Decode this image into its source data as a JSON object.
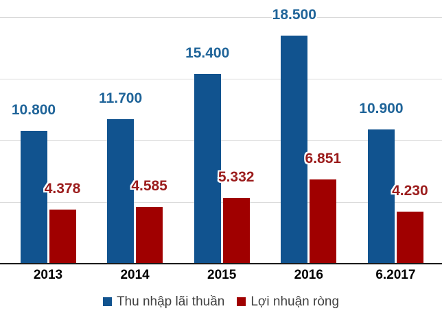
{
  "chart_data": {
    "type": "bar",
    "title": "",
    "xlabel": "",
    "ylabel": "",
    "categories": [
      "2013",
      "2014",
      "2015",
      "2016",
      "6.2017"
    ],
    "series": [
      {
        "name": "Thu nhập lãi thuần",
        "color": "#11538F",
        "label_color": "#1F6499",
        "values": [
          10800,
          11700,
          15400,
          18500,
          10900
        ],
        "labels": [
          "10.800",
          "11.700",
          "15.400",
          "18.500",
          "10.900"
        ]
      },
      {
        "name": "Lợi nhuận ròng",
        "color": "#A00000",
        "label_color": "#9B1C1C",
        "values": [
          4378,
          4585,
          5332,
          6851,
          4230
        ],
        "labels": [
          "4.378",
          "4.585",
          "5.332",
          "6.851",
          "4.230"
        ]
      }
    ],
    "ylim": [
      0,
      20000
    ],
    "gridline_step": 5000,
    "grid": true,
    "legend_position": "bottom",
    "colors": {
      "gridline": "#D9D9D9",
      "axis_line": "#1A1A1A",
      "xtick_text": "#000000",
      "legend_text": "#404040"
    }
  }
}
